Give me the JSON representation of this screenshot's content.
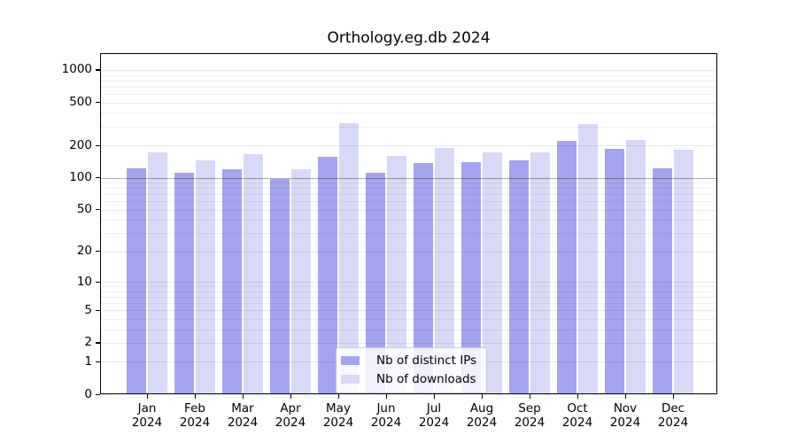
{
  "chart_data": {
    "type": "bar",
    "title": "Orthology.eg.db 2024",
    "categories": [
      "Jan",
      "Feb",
      "Mar",
      "Apr",
      "May",
      "Jun",
      "Jul",
      "Aug",
      "Sep",
      "Oct",
      "Nov",
      "Dec"
    ],
    "year_label": "2024",
    "series": [
      {
        "name": "Nb of distinct IPs",
        "color": "#a4a4f0",
        "values": [
          122,
          111,
          120,
          97,
          157,
          111,
          136,
          139,
          145,
          220,
          187,
          123
        ]
      },
      {
        "name": "Nb of downloads",
        "color": "#d8d8f8",
        "values": [
          171,
          146,
          165,
          121,
          324,
          159,
          190,
          171,
          173,
          317,
          223,
          182
        ]
      }
    ],
    "y_ticks": [
      "1000",
      "500",
      "200",
      "100",
      "50",
      "20",
      "10",
      "5",
      "2",
      "1",
      "0"
    ],
    "y_scale": "log10(1+x)",
    "ylim": [
      0,
      1430
    ],
    "grid": true,
    "highlight_gridline_value": 100,
    "legend_position": "lower-center"
  }
}
